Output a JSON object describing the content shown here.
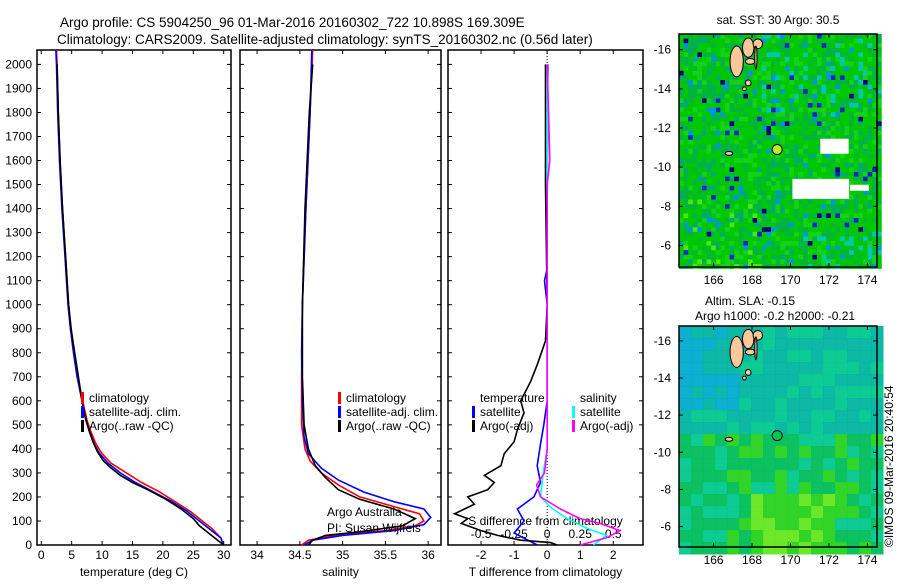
{
  "header": {
    "title_line1": "Argo profile: CS 5904250_96 01-Mar-2016 20160302_722 10.898S 169.309E",
    "title_line2": "Climatology: CARS2009. Satellite-adjusted climatology: synTS_20160302.nc (0.56d later)"
  },
  "footer_stamp": "©IMOS 09-Mar-2016 20:40:54",
  "annotation": {
    "line1": "Argo Australia",
    "line2": "PI: Susan Wijffels"
  },
  "chart_data": [
    {
      "type": "line",
      "id": "temperature",
      "xlabel": "temperature (deg C)",
      "ylabel": "",
      "xlim": [
        -0.7,
        31.2
      ],
      "ylim": [
        2060,
        0
      ],
      "xticks": [
        0,
        5,
        10,
        15,
        20,
        25,
        30
      ],
      "yticks": [
        0,
        100,
        200,
        300,
        400,
        500,
        600,
        700,
        800,
        900,
        1000,
        1100,
        1200,
        1300,
        1400,
        1500,
        1600,
        1700,
        1800,
        1900,
        2000
      ],
      "legend": [
        {
          "label": "climatology",
          "color": "#ff0000"
        },
        {
          "label": "satellite-adj. clim.",
          "color": "#0000ff"
        },
        {
          "label": "Argo(..raw -QC)",
          "color": "#000000"
        }
      ],
      "series": [
        {
          "name": "climatology",
          "color": "#ff0000",
          "points": [
            [
              30,
              0
            ],
            [
              29.5,
              30
            ],
            [
              28,
              70
            ],
            [
              26.5,
              100
            ],
            [
              24.5,
              140
            ],
            [
              22,
              180
            ],
            [
              19.5,
              220
            ],
            [
              16.5,
              260
            ],
            [
              14,
              300
            ],
            [
              11.5,
              340
            ],
            [
              10,
              380
            ],
            [
              9,
              420
            ],
            [
              8.2,
              470
            ],
            [
              7.5,
              520
            ],
            [
              6.8,
              600
            ],
            [
              6,
              700
            ],
            [
              5.4,
              800
            ],
            [
              4.9,
              900
            ],
            [
              4.5,
              1000
            ],
            [
              4,
              1200
            ],
            [
              3.5,
              1400
            ],
            [
              3.1,
              1600
            ],
            [
              2.8,
              1800
            ],
            [
              2.6,
              2000
            ],
            [
              2.5,
              2060
            ]
          ]
        },
        {
          "name": "satellite-adj. clim.",
          "color": "#0000ff",
          "points": [
            [
              30,
              0
            ],
            [
              29.5,
              30
            ],
            [
              28,
              60
            ],
            [
              26,
              100
            ],
            [
              24,
              140
            ],
            [
              21.5,
              180
            ],
            [
              18.5,
              220
            ],
            [
              15.5,
              260
            ],
            [
              13,
              300
            ],
            [
              11,
              340
            ],
            [
              9.6,
              380
            ],
            [
              8.7,
              420
            ],
            [
              8,
              470
            ],
            [
              7.3,
              520
            ],
            [
              6.7,
              600
            ],
            [
              5.9,
              700
            ],
            [
              5.3,
              800
            ],
            [
              4.8,
              900
            ],
            [
              4.4,
              1000
            ],
            [
              3.9,
              1200
            ],
            [
              3.4,
              1400
            ],
            [
              3,
              1600
            ],
            [
              2.7,
              1800
            ],
            [
              2.5,
              2000
            ],
            [
              2.4,
              2060
            ]
          ]
        },
        {
          "name": "Argo(..raw -QC)",
          "color": "#000000",
          "points": [
            [
              30,
              0
            ],
            [
              29,
              20
            ],
            [
              27.5,
              50
            ],
            [
              26,
              80
            ],
            [
              25,
              110
            ],
            [
              23,
              150
            ],
            [
              20.5,
              190
            ],
            [
              17.5,
              230
            ],
            [
              15,
              260
            ],
            [
              13,
              290
            ],
            [
              11.5,
              320
            ],
            [
              10.2,
              350
            ],
            [
              9.2,
              390
            ],
            [
              8.5,
              430
            ],
            [
              7.8,
              480
            ],
            [
              7.2,
              540
            ],
            [
              6.7,
              600
            ],
            [
              6.1,
              700
            ],
            [
              5.5,
              800
            ],
            [
              4.9,
              900
            ],
            [
              4.5,
              1000
            ],
            [
              4,
              1200
            ],
            [
              3.5,
              1400
            ],
            [
              3.1,
              1600
            ],
            [
              2.8,
              1800
            ],
            [
              2.6,
              2000
            ]
          ]
        }
      ]
    },
    {
      "type": "line",
      "id": "salinity",
      "xlabel": "salinity",
      "ylabel": "",
      "xlim": [
        33.8,
        36.15
      ],
      "ylim": [
        2060,
        0
      ],
      "xticks": [
        34,
        34.5,
        35,
        35.5,
        36
      ],
      "xtick_labels": [
        "34",
        "34.5",
        "35",
        "35.5",
        "36"
      ],
      "legend": [
        {
          "label": "climatology",
          "color": "#ff0000"
        },
        {
          "label": "satellite-adj. clim.",
          "color": "#0000ff"
        },
        {
          "label": "Argo(..raw -QC)",
          "color": "#000000"
        }
      ],
      "series": [
        {
          "name": "climatology",
          "color": "#ff0000",
          "points": [
            [
              34.52,
              0
            ],
            [
              34.6,
              20
            ],
            [
              34.9,
              40
            ],
            [
              35.5,
              60
            ],
            [
              35.85,
              80
            ],
            [
              35.95,
              100
            ],
            [
              35.9,
              130
            ],
            [
              35.6,
              160
            ],
            [
              35.2,
              200
            ],
            [
              34.95,
              250
            ],
            [
              34.75,
              300
            ],
            [
              34.62,
              350
            ],
            [
              34.56,
              400
            ],
            [
              34.52,
              500
            ],
            [
              34.52,
              700
            ],
            [
              34.53,
              1000
            ],
            [
              34.57,
              1400
            ],
            [
              34.62,
              1800
            ],
            [
              34.65,
              2060
            ]
          ]
        },
        {
          "name": "satellite-adj. clim.",
          "color": "#0000ff",
          "points": [
            [
              34.55,
              0
            ],
            [
              34.65,
              20
            ],
            [
              35,
              40
            ],
            [
              35.6,
              60
            ],
            [
              35.95,
              85
            ],
            [
              36.03,
              115
            ],
            [
              35.95,
              150
            ],
            [
              35.6,
              180
            ],
            [
              35.25,
              220
            ],
            [
              34.95,
              270
            ],
            [
              34.75,
              320
            ],
            [
              34.6,
              380
            ],
            [
              34.55,
              450
            ],
            [
              34.53,
              600
            ],
            [
              34.52,
              800
            ],
            [
              34.53,
              1000
            ],
            [
              34.57,
              1400
            ],
            [
              34.62,
              1800
            ],
            [
              34.64,
              2060
            ]
          ]
        },
        {
          "name": "Argo(..raw -QC)",
          "color": "#000000",
          "points": [
            [
              34.6,
              0
            ],
            [
              34.65,
              20
            ],
            [
              34.8,
              40
            ],
            [
              35.2,
              55
            ],
            [
              35.7,
              80
            ],
            [
              35.85,
              110
            ],
            [
              35.6,
              150
            ],
            [
              35.2,
              190
            ],
            [
              34.95,
              230
            ],
            [
              34.8,
              280
            ],
            [
              34.68,
              330
            ],
            [
              34.6,
              400
            ],
            [
              34.55,
              500
            ],
            [
              34.53,
              700
            ],
            [
              34.53,
              1000
            ],
            [
              34.56,
              1400
            ],
            [
              34.61,
              1800
            ],
            [
              34.65,
              2000
            ]
          ]
        }
      ]
    },
    {
      "type": "line",
      "id": "differences",
      "xlabel": "T difference from climatology",
      "x2label": "S difference from climatology",
      "xlim": [
        -3,
        2.9
      ],
      "ylim": [
        2060,
        0
      ],
      "s_to_t_scale": 4,
      "xticks": [
        -2,
        -1,
        0,
        1,
        2
      ],
      "xtick_labels": [
        "-2",
        "-1",
        "0",
        "1",
        "2"
      ],
      "x2ticks": [
        -0.5,
        -0.25,
        0,
        0.25,
        0.5
      ],
      "x2tick_labels": [
        "-0.5",
        "-0.25",
        "0",
        "0.25",
        "0.5"
      ],
      "legend_t": {
        "heading": "temperature",
        "entries": [
          {
            "label": "satellite",
            "color": "#0000ff"
          },
          {
            "label": "Argo(-adj)",
            "color": "#000000"
          }
        ]
      },
      "legend_s": {
        "heading": "salinity",
        "entries": [
          {
            "label": "satellite",
            "color": "#00ffff"
          },
          {
            "label": "Argo(-adj)",
            "color": "#ff00ff"
          }
        ]
      },
      "series": [
        {
          "name": "T satellite",
          "axis": "T",
          "color": "#0000ff",
          "points": [
            [
              -0.3,
              0
            ],
            [
              -1.0,
              50
            ],
            [
              -0.7,
              100
            ],
            [
              -0.9,
              150
            ],
            [
              -0.4,
              200
            ],
            [
              -0.2,
              260
            ],
            [
              -0.3,
              330
            ],
            [
              -0.2,
              420
            ],
            [
              -0.1,
              500
            ],
            [
              0,
              600
            ],
            [
              0,
              1000
            ],
            [
              -0.08,
              1100
            ],
            [
              0,
              1150
            ],
            [
              0,
              1500
            ],
            [
              0.02,
              2000
            ]
          ]
        },
        {
          "name": "T Argo(-adj)",
          "axis": "T",
          "color": "#000000",
          "points": [
            [
              0.3,
              0
            ],
            [
              0.1,
              10
            ],
            [
              -0.8,
              20
            ],
            [
              -1.5,
              40
            ],
            [
              -2.0,
              60
            ],
            [
              -2.6,
              90
            ],
            [
              -2.4,
              110
            ],
            [
              -2.8,
              130
            ],
            [
              -2.2,
              170
            ],
            [
              -2.4,
              200
            ],
            [
              -1.8,
              230
            ],
            [
              -1.6,
              260
            ],
            [
              -1.9,
              290
            ],
            [
              -1.4,
              330
            ],
            [
              -1.3,
              380
            ],
            [
              -1.0,
              430
            ],
            [
              -0.9,
              480
            ],
            [
              -0.7,
              550
            ],
            [
              -0.8,
              600
            ],
            [
              -0.5,
              680
            ],
            [
              -0.3,
              750
            ],
            [
              -0.05,
              850
            ],
            [
              0,
              1000
            ],
            [
              -0.05,
              1500
            ],
            [
              -0.05,
              2000
            ]
          ]
        },
        {
          "name": "S satellite",
          "axis": "S",
          "color": "#00ffff",
          "points": [
            [
              0.35,
              0
            ],
            [
              0.45,
              40
            ],
            [
              0.3,
              70
            ],
            [
              0.15,
              110
            ],
            [
              0.02,
              160
            ],
            [
              -0.05,
              200
            ],
            [
              -0.03,
              300
            ],
            [
              0,
              400
            ],
            [
              0,
              2000
            ]
          ]
        },
        {
          "name": "S Argo(-adj)",
          "axis": "S",
          "color": "#ff00ff",
          "points": [
            [
              0.25,
              0
            ],
            [
              0.45,
              30
            ],
            [
              0.55,
              60
            ],
            [
              0.4,
              90
            ],
            [
              0.25,
              110
            ],
            [
              0.1,
              150
            ],
            [
              -0.05,
              200
            ],
            [
              -0.08,
              250
            ],
            [
              -0.02,
              300
            ],
            [
              0,
              400
            ],
            [
              0,
              1500
            ],
            [
              0.02,
              1600
            ],
            [
              0,
              2000
            ]
          ]
        }
      ]
    },
    {
      "type": "heatmap",
      "id": "sst-map",
      "title": "sat. SST: 30 Argo: 30.5",
      "xlim": [
        164.2,
        174.5
      ],
      "ylim": [
        -16.8,
        -4.9
      ],
      "xticks": [
        166,
        168,
        170,
        172,
        174
      ],
      "xtick_labels": [
        "166",
        "168",
        "170",
        "172",
        "174"
      ],
      "yticks": [
        -6,
        -8,
        -10,
        -12,
        -14,
        -16
      ],
      "ytick_labels": [
        "-6",
        "-8",
        "-10",
        "-12",
        "-14",
        "-16"
      ],
      "float_position": [
        169.309,
        -10.898
      ],
      "float_color": "#b6f01e",
      "palette": [
        "#00c800",
        "#00b43c",
        "#14d214",
        "#00aa6e",
        "#00c8b4",
        "#50e614",
        "#0096dc",
        "#0028c8",
        "#000080"
      ]
    },
    {
      "type": "heatmap",
      "id": "sla-map",
      "title_line1": "Altim. SLA: -0.15",
      "title_line2": "Argo h1000: -0.2 h2000: -0.21",
      "xlim": [
        164.2,
        174.5
      ],
      "ylim": [
        -16.8,
        -4.9
      ],
      "xticks": [
        166,
        168,
        170,
        172,
        174
      ],
      "xtick_labels": [
        "166",
        "168",
        "170",
        "172",
        "174"
      ],
      "yticks": [
        -6,
        -8,
        -10,
        -12,
        -14,
        -16
      ],
      "ytick_labels": [
        "-6",
        "-8",
        "-10",
        "-12",
        "-14",
        "-16"
      ],
      "float_position": [
        169.309,
        -10.898
      ],
      "float_color": "#00c850",
      "palette": [
        "#00b4a0",
        "#00c88c",
        "#00be5a",
        "#28d21e",
        "#64e61e",
        "#00aacc"
      ]
    }
  ]
}
